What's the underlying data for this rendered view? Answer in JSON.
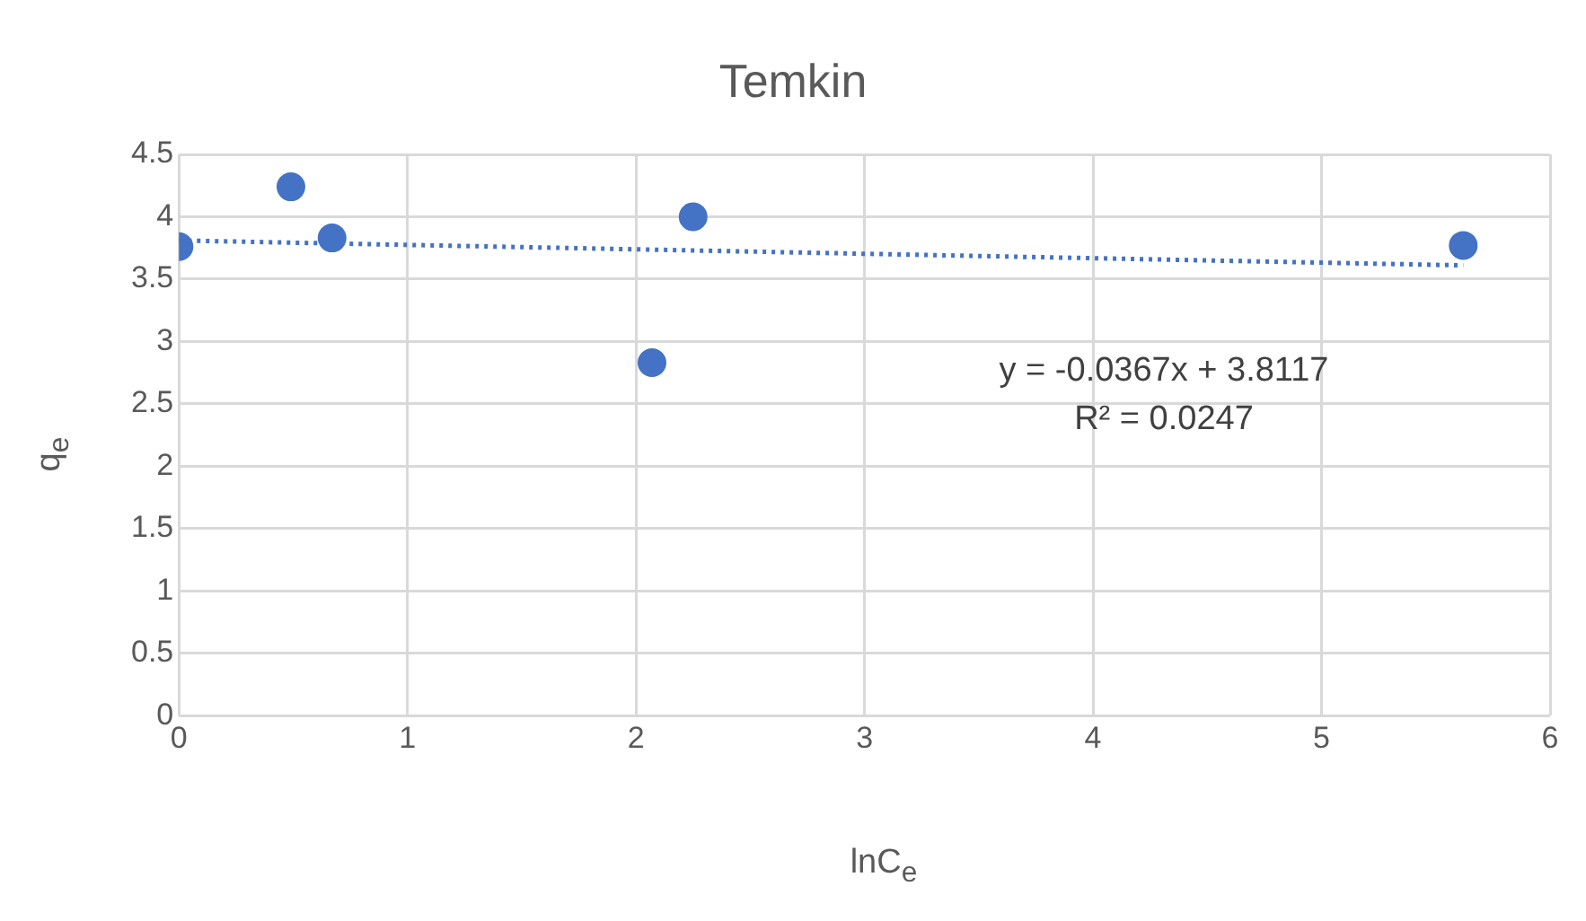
{
  "chart_data": {
    "type": "scatter",
    "title": "Temkin",
    "xlabel": "lnC$_{e}$",
    "ylabel": "q$_{e}$",
    "xlim": [
      0,
      6
    ],
    "xticks": [
      0,
      1,
      2,
      3,
      4,
      5,
      6
    ],
    "ylim": [
      0,
      4.5
    ],
    "yticks": [
      0,
      0.5,
      1,
      1.5,
      2,
      2.5,
      3,
      3.5,
      4,
      4.5
    ],
    "grid": true,
    "marker": "circle",
    "series": [
      {
        "type": "scatter",
        "color": "#4472c4",
        "x": [
          0,
          0.49,
          0.67,
          2.07,
          2.25,
          5.62
        ],
        "values": [
          3.76,
          4.24,
          3.83,
          2.83,
          4.0,
          3.77
        ]
      },
      {
        "type": "line",
        "color": "#4472c4",
        "line_style": "dotted",
        "marker": "none",
        "x": [
          0,
          5.62
        ],
        "values": [
          3.81,
          3.61
        ]
      }
    ],
    "annotations": [
      "y = -0.0367x + 3.8117",
      "R² = 0.0247"
    ]
  }
}
